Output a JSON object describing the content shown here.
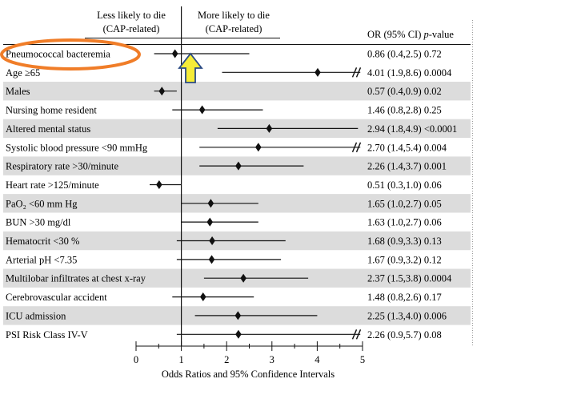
{
  "chart_data": {
    "type": "forest",
    "header_left": [
      "Less likely to die",
      "(CAP-related)"
    ],
    "header_right": [
      "More likely to die",
      "(CAP-related)"
    ],
    "column_header": {
      "prefix": "OR  (95% CI)  ",
      "italic": "p",
      "suffix": "-value"
    },
    "xlabel": "Odds Ratios and 95% Confidence Intervals",
    "xlim": [
      0,
      5
    ],
    "xticks": [
      "0",
      "1",
      "2",
      "3",
      "4",
      "5"
    ],
    "reference_line": 1,
    "rows": [
      {
        "label": "Pneumococcal bacteremia",
        "or": 0.86,
        "lo": 0.4,
        "hi": 2.5,
        "text": "0.86 (0.4,2.5) 0.72",
        "shaded": false,
        "break": false,
        "highlighted": true
      },
      {
        "label": "Age ≥65",
        "or": 4.01,
        "lo": 1.9,
        "hi": 8.6,
        "text": "4.01 (1.9,8.6) 0.0004",
        "shaded": false,
        "break": true
      },
      {
        "label": "Males",
        "or": 0.57,
        "lo": 0.4,
        "hi": 0.9,
        "text": "0.57 (0.4,0.9) 0.02",
        "shaded": true,
        "break": false
      },
      {
        "label": "Nursing home resident",
        "or": 1.46,
        "lo": 0.8,
        "hi": 2.8,
        "text": "1.46 (0.8,2.8) 0.25",
        "shaded": false,
        "break": false
      },
      {
        "label": "Altered mental status",
        "or": 2.94,
        "lo": 1.8,
        "hi": 4.9,
        "text": "2.94 (1.8,4.9) <0.0001",
        "shaded": true,
        "break": false
      },
      {
        "label": "Systolic blood pressure  <90 mmHg",
        "or": 2.7,
        "lo": 1.4,
        "hi": 5.4,
        "text": "2.70 (1.4,5.4) 0.004",
        "shaded": false,
        "break": true
      },
      {
        "label": "Respiratory rate >30/minute",
        "or": 2.26,
        "lo": 1.4,
        "hi": 3.7,
        "text": "2.26 (1.4,3.7) 0.001",
        "shaded": true,
        "break": false
      },
      {
        "label": "Heart rate >125/minute",
        "or": 0.51,
        "lo": 0.3,
        "hi": 1.0,
        "text": "0.51 (0.3,1.0) 0.06",
        "shaded": false,
        "break": false
      },
      {
        "label": "PaO₂ <60 mm Hg",
        "or": 1.65,
        "lo": 1.0,
        "hi": 2.7,
        "text": "1.65 (1.0,2.7) 0.05",
        "shaded": true,
        "break": false
      },
      {
        "label": "BUN >30 mg/dl",
        "or": 1.63,
        "lo": 1.0,
        "hi": 2.7,
        "text": "1.63 (1.0,2.7) 0.06",
        "shaded": false,
        "break": false
      },
      {
        "label": "Hematocrit <30 %",
        "or": 1.68,
        "lo": 0.9,
        "hi": 3.3,
        "text": "1.68 (0.9,3.3) 0.13",
        "shaded": true,
        "break": false
      },
      {
        "label": "Arterial pH <7.35",
        "or": 1.67,
        "lo": 0.9,
        "hi": 3.2,
        "text": "1.67 (0.9,3.2) 0.12",
        "shaded": false,
        "break": false
      },
      {
        "label": "Multilobar infiltrates at chest x-ray",
        "or": 2.37,
        "lo": 1.5,
        "hi": 3.8,
        "text": "2.37 (1.5,3.8) 0.0004",
        "shaded": true,
        "break": false
      },
      {
        "label": "Cerebrovascular accident",
        "or": 1.48,
        "lo": 0.8,
        "hi": 2.6,
        "text": "1.48 (0.8,2.6) 0.17",
        "shaded": false,
        "break": false
      },
      {
        "label": "ICU admission",
        "or": 2.25,
        "lo": 1.3,
        "hi": 4.0,
        "text": "2.25 (1.3,4.0) 0.006",
        "shaded": true,
        "break": false
      },
      {
        "label": "PSI Risk Class IV-V",
        "or": 2.26,
        "lo": 0.9,
        "hi": 5.7,
        "text": "2.26 (0.9,5.7) 0.08",
        "shaded": false,
        "break": true
      }
    ]
  },
  "colors": {
    "row_shade": "#dcdcdc",
    "highlight_ellipse": "#f07d28",
    "arrow_fill": "#f5ec38",
    "arrow_stroke": "#2a4a84",
    "ink": "#111111"
  },
  "annotations": {
    "ellipse_target": "Pneumococcal bacteremia",
    "arrow_target": "reference line at OR 1"
  }
}
